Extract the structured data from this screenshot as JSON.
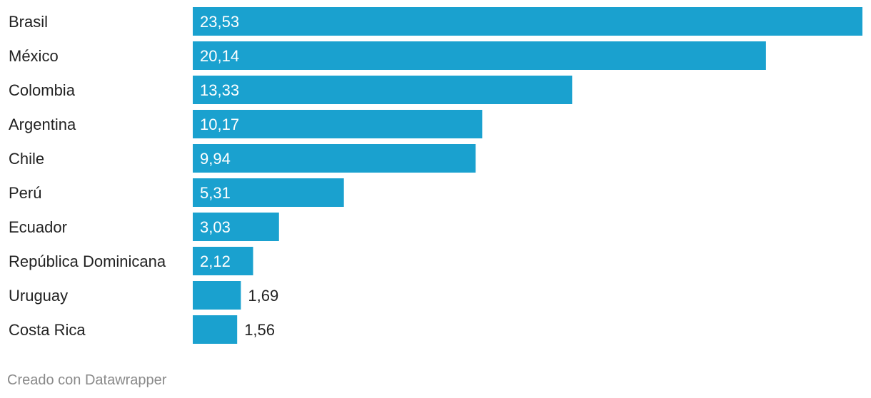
{
  "chart_data": {
    "type": "bar",
    "orientation": "horizontal",
    "title": "",
    "xlabel": "",
    "ylabel": "",
    "grid": false,
    "legend": "none",
    "bar_color": "#1aa1cf",
    "xlim": [
      0,
      23.53
    ],
    "categories": [
      "Brasil",
      "México",
      "Colombia",
      "Argentina",
      "Chile",
      "Perú",
      "Ecuador",
      "República Dominicana",
      "Uruguay",
      "Costa Rica"
    ],
    "values": [
      23.53,
      20.14,
      13.33,
      10.17,
      9.94,
      5.31,
      3.03,
      2.12,
      1.69,
      1.56
    ],
    "value_labels": [
      "23,53",
      "20,14",
      "13,33",
      "10,17",
      "9,94",
      "5,31",
      "3,03",
      "2,12",
      "1,69",
      "1,56"
    ]
  },
  "footer": {
    "credit": "Creado con Datawrapper"
  }
}
